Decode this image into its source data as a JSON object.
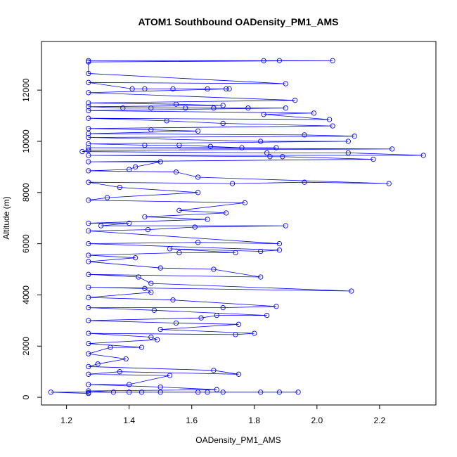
{
  "chart_data": {
    "type": "scatter",
    "title": "ATOM1 Southbound OADensity_PM1_AMS",
    "xlabel": "OADensity_PM1_AMS",
    "ylabel": "Altitude (m)",
    "xlim": [
      1.12,
      2.38
    ],
    "ylim": [
      -300,
      13900
    ],
    "x_ticks": [
      "1.2",
      "1.4",
      "1.6",
      "1.8",
      "2.0",
      "2.2"
    ],
    "y_ticks": [
      "0",
      "2000",
      "4000",
      "6000",
      "8000",
      "10000",
      "12000"
    ],
    "grid": false,
    "legend": "none",
    "style": {
      "marker": "open-circle",
      "line": true,
      "color": "#0000ff"
    },
    "points": [
      [
        1.27,
        13150
      ],
      [
        1.83,
        13150
      ],
      [
        1.88,
        13150
      ],
      [
        2.05,
        13150
      ],
      [
        1.27,
        13100
      ],
      [
        1.27,
        12650
      ],
      [
        1.9,
        12250
      ],
      [
        1.27,
        12300
      ],
      [
        1.41,
        12050
      ],
      [
        1.45,
        12050
      ],
      [
        1.54,
        12050
      ],
      [
        1.65,
        12050
      ],
      [
        1.71,
        12050
      ],
      [
        1.72,
        12050
      ],
      [
        1.27,
        11900
      ],
      [
        1.93,
        11600
      ],
      [
        1.27,
        11500
      ],
      [
        1.55,
        11450
      ],
      [
        1.7,
        11400
      ],
      [
        1.27,
        11350
      ],
      [
        1.38,
        11300
      ],
      [
        1.47,
        11300
      ],
      [
        1.58,
        11300
      ],
      [
        1.67,
        11300
      ],
      [
        1.78,
        11300
      ],
      [
        1.9,
        11300
      ],
      [
        1.27,
        11200
      ],
      [
        1.99,
        11100
      ],
      [
        1.83,
        11050
      ],
      [
        2.04,
        10850
      ],
      [
        1.27,
        10900
      ],
      [
        1.52,
        10800
      ],
      [
        1.7,
        10700
      ],
      [
        2.05,
        10600
      ],
      [
        1.27,
        10500
      ],
      [
        1.47,
        10450
      ],
      [
        1.62,
        10400
      ],
      [
        1.27,
        10300
      ],
      [
        1.96,
        10250
      ],
      [
        2.12,
        10200
      ],
      [
        1.27,
        10150
      ],
      [
        1.82,
        10000
      ],
      [
        2.1,
        10000
      ],
      [
        1.27,
        9900
      ],
      [
        1.45,
        9850
      ],
      [
        1.56,
        9850
      ],
      [
        1.66,
        9800
      ],
      [
        1.76,
        9750
      ],
      [
        1.87,
        9750
      ],
      [
        1.27,
        9750
      ],
      [
        2.24,
        9700
      ],
      [
        1.27,
        9650
      ],
      [
        1.25,
        9600
      ],
      [
        1.84,
        9550
      ],
      [
        2.1,
        9550
      ],
      [
        2.34,
        9450
      ],
      [
        1.27,
        9450
      ],
      [
        1.85,
        9400
      ],
      [
        1.89,
        9400
      ],
      [
        2.18,
        9300
      ],
      [
        1.27,
        9200
      ],
      [
        1.5,
        9200
      ],
      [
        1.42,
        9000
      ],
      [
        1.4,
        8900
      ],
      [
        1.27,
        8850
      ],
      [
        1.55,
        8800
      ],
      [
        1.62,
        8600
      ],
      [
        2.23,
        8350
      ],
      [
        1.96,
        8400
      ],
      [
        1.73,
        8350
      ],
      [
        1.27,
        8400
      ],
      [
        1.37,
        8200
      ],
      [
        1.62,
        8000
      ],
      [
        1.33,
        7800
      ],
      [
        1.27,
        7700
      ],
      [
        1.77,
        7600
      ],
      [
        1.56,
        7300
      ],
      [
        1.71,
        7200
      ],
      [
        1.45,
        7050
      ],
      [
        1.65,
        6950
      ],
      [
        1.27,
        6800
      ],
      [
        1.4,
        6800
      ],
      [
        1.31,
        6700
      ],
      [
        1.9,
        6700
      ],
      [
        1.61,
        6650
      ],
      [
        1.46,
        6550
      ],
      [
        1.27,
        6500
      ],
      [
        1.88,
        6000
      ],
      [
        1.62,
        6050
      ],
      [
        1.27,
        6000
      ],
      [
        1.88,
        5750
      ],
      [
        1.82,
        5700
      ],
      [
        1.53,
        5800
      ],
      [
        1.74,
        5650
      ],
      [
        1.56,
        5650
      ],
      [
        1.27,
        5550
      ],
      [
        1.42,
        5450
      ],
      [
        1.27,
        5300
      ],
      [
        1.5,
        5050
      ],
      [
        1.67,
        5000
      ],
      [
        1.82,
        4700
      ],
      [
        1.27,
        4800
      ],
      [
        1.43,
        4700
      ],
      [
        1.47,
        4450
      ],
      [
        2.11,
        4150
      ],
      [
        1.27,
        4300
      ],
      [
        1.45,
        4250
      ],
      [
        1.47,
        4100
      ],
      [
        1.27,
        3900
      ],
      [
        1.54,
        3800
      ],
      [
        1.87,
        3550
      ],
      [
        1.7,
        3500
      ],
      [
        1.27,
        3500
      ],
      [
        1.48,
        3400
      ],
      [
        1.84,
        3200
      ],
      [
        1.68,
        3200
      ],
      [
        1.63,
        3100
      ],
      [
        1.27,
        3000
      ],
      [
        1.55,
        2900
      ],
      [
        1.75,
        2850
      ],
      [
        1.5,
        2650
      ],
      [
        1.8,
        2500
      ],
      [
        1.74,
        2450
      ],
      [
        1.27,
        2500
      ],
      [
        1.47,
        2350
      ],
      [
        1.49,
        2250
      ],
      [
        1.27,
        2100
      ],
      [
        1.44,
        1950
      ],
      [
        1.34,
        1950
      ],
      [
        1.27,
        1700
      ],
      [
        1.39,
        1500
      ],
      [
        1.3,
        1300
      ],
      [
        1.27,
        1200
      ],
      [
        1.67,
        1050
      ],
      [
        1.75,
        900
      ],
      [
        1.37,
        1000
      ],
      [
        1.27,
        900
      ],
      [
        1.53,
        850
      ],
      [
        1.4,
        500
      ],
      [
        1.27,
        500
      ],
      [
        1.5,
        400
      ],
      [
        1.68,
        300
      ],
      [
        1.27,
        250
      ],
      [
        1.35,
        200
      ],
      [
        1.4,
        200
      ],
      [
        1.44,
        200
      ],
      [
        1.5,
        200
      ],
      [
        1.62,
        200
      ],
      [
        1.65,
        200
      ],
      [
        1.7,
        200
      ],
      [
        1.82,
        200
      ],
      [
        1.88,
        200
      ],
      [
        1.94,
        200
      ],
      [
        1.15,
        200
      ],
      [
        1.27,
        150
      ],
      [
        1.27,
        180
      ]
    ]
  }
}
